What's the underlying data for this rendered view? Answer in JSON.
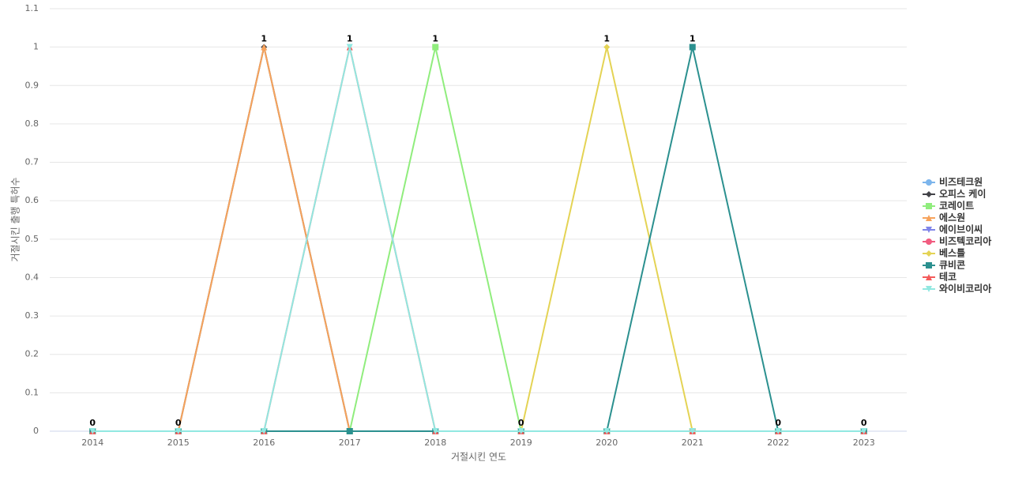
{
  "chart_data": {
    "type": "line",
    "x_label": "거절시킨 연도",
    "y_label": "거절시킨 출행 특허수",
    "categories": [
      "2014",
      "2015",
      "2016",
      "2017",
      "2018",
      "2019",
      "2020",
      "2021",
      "2022",
      "2023"
    ],
    "ylim": [
      0,
      1.1
    ],
    "yticks": [
      0,
      0.1,
      0.2,
      0.3,
      0.4,
      0.5,
      0.6,
      0.7,
      0.8,
      0.9,
      1,
      1.1
    ],
    "grid": true,
    "legend": "right",
    "data_labels": [
      0,
      0,
      1,
      1,
      1,
      0,
      1,
      1,
      0,
      0
    ],
    "series": [
      {
        "name": "비즈테크원",
        "color": "#7cb5ec",
        "values": [
          0,
          0,
          0,
          0,
          0,
          0,
          0,
          0,
          0,
          0
        ]
      },
      {
        "name": "오피스 케이",
        "color": "#434348",
        "values": [
          0,
          0,
          1,
          0,
          0,
          0,
          0,
          0,
          0,
          0
        ]
      },
      {
        "name": "코레이트",
        "color": "#90ed7d",
        "values": [
          0,
          0,
          0,
          0,
          1,
          0,
          0,
          0,
          0,
          0
        ]
      },
      {
        "name": "에스원",
        "color": "#f7a35c",
        "values": [
          0,
          0,
          1,
          0,
          0,
          0,
          0,
          0,
          0,
          0
        ]
      },
      {
        "name": "에이브이씨",
        "color": "#8085e9",
        "values": [
          0,
          0,
          0,
          0,
          0,
          0,
          0,
          0,
          0,
          0
        ]
      },
      {
        "name": "비즈텍코리아",
        "color": "#f15c80",
        "values": [
          0,
          0,
          0,
          0,
          0,
          0,
          0,
          0,
          0,
          0
        ]
      },
      {
        "name": "베스틀",
        "color": "#e4d354",
        "values": [
          0,
          0,
          0,
          0,
          0,
          0,
          1,
          0,
          0,
          0
        ]
      },
      {
        "name": "큐비콘",
        "color": "#2b908f",
        "values": [
          0,
          0,
          0,
          0,
          0,
          0,
          0,
          1,
          0,
          0
        ]
      },
      {
        "name": "테코",
        "color": "#f45b5b",
        "values": [
          0,
          0,
          0,
          1,
          0,
          0,
          0,
          0,
          0,
          0
        ]
      },
      {
        "name": "와이비코리아",
        "color": "#91e8e1",
        "values": [
          0,
          0,
          0,
          1,
          0,
          0,
          0,
          0,
          0,
          0
        ]
      }
    ]
  }
}
